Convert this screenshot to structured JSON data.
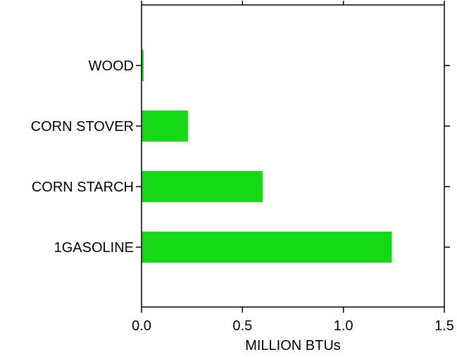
{
  "chart_data": {
    "type": "bar",
    "orientation": "horizontal",
    "categories": [
      "WOOD",
      "CORN STOVER",
      "CORN STARCH",
      "1GASOLINE"
    ],
    "values": [
      0.01,
      0.23,
      0.6,
      1.24
    ],
    "xlabel": "MILLION BTUs",
    "ylabel": "",
    "xlim": [
      0,
      1.5
    ],
    "xticks": [
      0.0,
      0.5,
      1.0,
      1.5
    ],
    "xtick_labels": [
      "0.0",
      "0.5",
      "1.0",
      "1.5"
    ],
    "bar_color": "#14d914",
    "grid": false,
    "legend": "none"
  }
}
